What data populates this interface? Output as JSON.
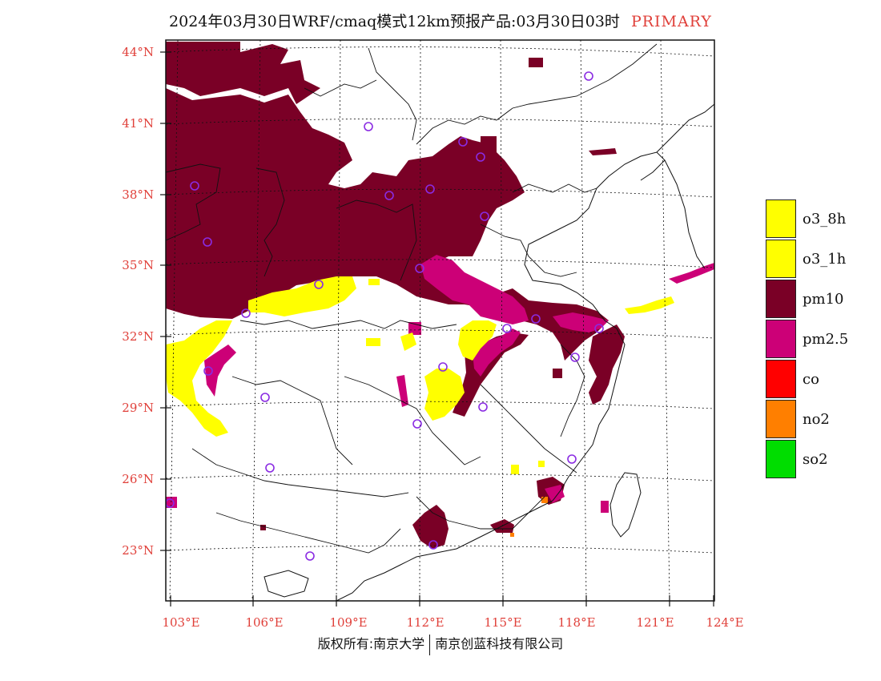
{
  "title": {
    "main": "2024年03月30日WRF/cmaq模式12km预报产品:03月30日03时",
    "tag": "PRIMARY"
  },
  "axes": {
    "lat_labels": [
      "44°N",
      "41°N",
      "38°N",
      "35°N",
      "32°N",
      "29°N",
      "26°N",
      "23°N"
    ],
    "lon_labels": [
      "103°E",
      "106°E",
      "109°E",
      "112°E",
      "115°E",
      "118°E",
      "121°E",
      "124°E"
    ]
  },
  "legend": {
    "items": [
      {
        "label": "o3_8h",
        "color": "#ffff00"
      },
      {
        "label": "o3_1h",
        "color": "#ffff00"
      },
      {
        "label": "pm10",
        "color": "#7a0026"
      },
      {
        "label": "pm2.5",
        "color": "#cc0077"
      },
      {
        "label": "co",
        "color": "#ff0000"
      },
      {
        "label": "no2",
        "color": "#ff7f00"
      },
      {
        "label": "so2",
        "color": "#00dd00"
      }
    ]
  },
  "colors": {
    "pm10": "#7a0026",
    "pm25": "#cc0077",
    "o3": "#ffff00",
    "no2": "#ff7f00",
    "station": "#8a2be2",
    "label_red": "#e0403a"
  },
  "footer": {
    "left": "版权所有:南京大学",
    "right": "南京创蓝科技有限公司"
  }
}
